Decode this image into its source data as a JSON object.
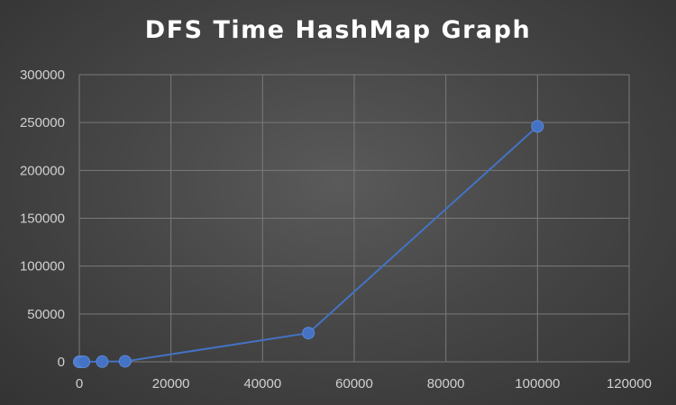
{
  "chart_data": {
    "type": "scatter",
    "title": "DFS Time HashMap Graph",
    "xlabel": "",
    "ylabel": "",
    "xlim": [
      0,
      120000
    ],
    "ylim": [
      0,
      300000
    ],
    "x_ticks": [
      0,
      20000,
      40000,
      60000,
      80000,
      100000,
      120000
    ],
    "y_ticks": [
      0,
      50000,
      100000,
      150000,
      200000,
      250000,
      300000
    ],
    "grid": true,
    "legend": "none",
    "series": [
      {
        "color": "#4472c4",
        "points": [
          {
            "x": 0,
            "y": 0
          },
          {
            "x": 100,
            "y": 0
          },
          {
            "x": 500,
            "y": 0
          },
          {
            "x": 1000,
            "y": 0
          },
          {
            "x": 5000,
            "y": 200
          },
          {
            "x": 10000,
            "y": 500
          },
          {
            "x": 50000,
            "y": 30000
          },
          {
            "x": 100000,
            "y": 246000
          }
        ]
      }
    ]
  }
}
